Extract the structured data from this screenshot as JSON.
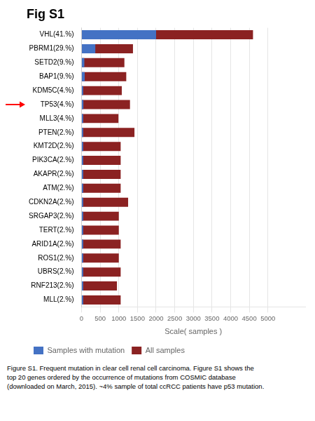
{
  "chart_data": {
    "type": "bar",
    "orientation": "horizontal",
    "title": "Fig S1",
    "categories": [
      "VHL(41.%)",
      "PBRM1(29.%)",
      "SETD2(9.%)",
      "BAP1(9.%)",
      "KDM5C(4.%)",
      "TP53(4.%)",
      "MLL3(4.%)",
      "PTEN(2.%)",
      "KMT2D(2.%)",
      "PIK3CA(2.%)",
      "AKAPR(2.%)",
      "ATM(2.%)",
      "CDKN2A(2.%)",
      "SRGAP3(2.%)",
      "TERT(2.%)",
      "ARID1A(2.%)",
      "ROS1(2.%)",
      "UBRS(2.%)",
      "RNF213(2.%)",
      "MLL(2.%)"
    ],
    "series": [
      {
        "name": "Samples with mutation",
        "color": "#4472C4",
        "values": [
          2000,
          370,
          75,
          85,
          45,
          50,
          45,
          45,
          45,
          45,
          45,
          45,
          45,
          45,
          45,
          45,
          45,
          45,
          45,
          45
        ]
      },
      {
        "name": "All samples",
        "color": "#8B2222",
        "values": [
          4600,
          1380,
          1150,
          1200,
          1080,
          1300,
          990,
          1420,
          1050,
          1050,
          1050,
          1050,
          1250,
          1000,
          1000,
          1050,
          1000,
          1050,
          950,
          1050
        ]
      }
    ],
    "stacked": false,
    "xlabel": "Scale( samples )",
    "xlim": [
      0,
      6000
    ],
    "xticks": [
      0,
      500,
      1000,
      1500,
      2000,
      2500,
      3000,
      3500,
      4000,
      4500,
      5000
    ],
    "grid": true,
    "legend": "bottom",
    "annotations": [
      {
        "type": "arrow",
        "category": "TP53(4.%)",
        "color": "red"
      }
    ],
    "caption": [
      "Figure S1. Frequent mutation in clear cell renal cell carcinoma. Figure S1 shows the",
      "top 20 genes ordered by the occurrence of mutations from COSMIC database",
      "(downloaded on March, 2015). ~4% sample of total ccRCC patients have p53 mutation."
    ]
  }
}
